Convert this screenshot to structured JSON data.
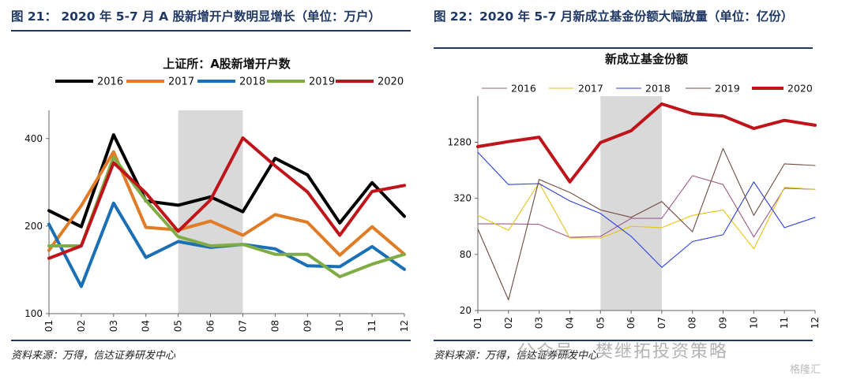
{
  "left": {
    "figure_title": "图 21： 2020 年 5-7 月 A 股新增开户数明显增长（单位：万户）",
    "source": "资料来源：万得，信达证券研发中心"
  },
  "right": {
    "figure_title": "图 22：2020 年 5-7 月新成立基金份额大幅放量（单位：亿份）",
    "source": "资料来源：万得，信达证券研发中心"
  },
  "watermark": "公众号 · 樊继拓投资策略",
  "watermark_logo": "格隆汇",
  "chart_data": [
    {
      "type": "line",
      "title": "上证所：A股新增开户数",
      "categories": [
        "01",
        "02",
        "03",
        "04",
        "05",
        "06",
        "07",
        "08",
        "09",
        "10",
        "11",
        "12"
      ],
      "y_ticks": [
        100,
        200,
        400
      ],
      "ylim": [
        100,
        500
      ],
      "y_scale": "log",
      "highlight_range": [
        "05",
        "07"
      ],
      "legend_position": "top",
      "grid": false,
      "series": [
        {
          "name": "2016",
          "color": "#000000",
          "values": [
            226,
            199,
            412,
            244,
            236,
            252,
            224,
            342,
            300,
            205,
            282,
            216
          ]
        },
        {
          "name": "2017",
          "color": "#e07b26",
          "values": [
            165,
            235,
            360,
            198,
            194,
            208,
            186,
            219,
            206,
            159,
            199,
            160
          ]
        },
        {
          "name": "2018",
          "color": "#1a6fb5",
          "values": [
            203,
            124,
            240,
            156,
            177,
            169,
            173,
            167,
            146,
            145,
            170,
            142
          ]
        },
        {
          "name": "2019",
          "color": "#7fac45",
          "values": [
            171,
            171,
            345,
            245,
            184,
            171,
            173,
            160,
            160,
            134,
            148,
            160
          ]
        },
        {
          "name": "2020",
          "color": "#c0141b",
          "values": [
            155,
            171,
            330,
            260,
            192,
            246,
            402,
            322,
            262,
            186,
            263,
            276
          ]
        }
      ]
    },
    {
      "type": "line",
      "title": "新成立基金份额",
      "categories": [
        "01",
        "02",
        "03",
        "04",
        "05",
        "06",
        "07",
        "08",
        "09",
        "10",
        "11",
        "12"
      ],
      "y_ticks": [
        20,
        80,
        320,
        1280
      ],
      "ylim": [
        20,
        4000
      ],
      "y_scale": "log",
      "highlight_range": [
        "05",
        "07"
      ],
      "legend_position": "top",
      "grid": false,
      "series": [
        {
          "name": "2016",
          "color": "#9c5b86",
          "values": [
            170,
            170,
            168,
            122,
            125,
            195,
            195,
            560,
            450,
            123,
            410,
            400
          ]
        },
        {
          "name": "2017",
          "color": "#e6c21a",
          "values": [
            210,
            145,
            470,
            120,
            120,
            160,
            155,
            210,
            240,
            92,
            420,
            400
          ]
        },
        {
          "name": "2018",
          "color": "#2a3fe0",
          "values": [
            1000,
            450,
            460,
            300,
            220,
            125,
            58,
            110,
            130,
            480,
            155,
            200
          ]
        },
        {
          "name": "2019",
          "color": "#6e4b3f",
          "values": [
            150,
            26,
            510,
            370,
            240,
            200,
            295,
            140,
            1100,
            210,
            750,
            720
          ]
        },
        {
          "name": "2020",
          "color": "#c0141b",
          "values": [
            1150,
            1300,
            1450,
            480,
            1270,
            1700,
            3300,
            2600,
            2450,
            1800,
            2200,
            1950
          ]
        }
      ]
    }
  ]
}
